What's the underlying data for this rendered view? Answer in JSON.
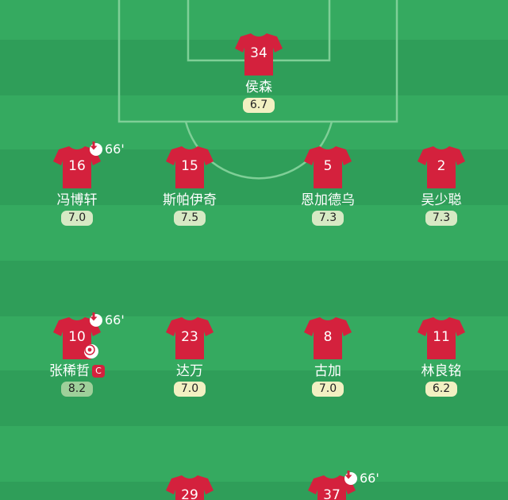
{
  "colors": {
    "pitch_stripe_dark": "#2f9e59",
    "pitch_stripe_light": "#35aa60",
    "line": "#7fcf97",
    "shirt": "#d4213d",
    "rating_low": "#f2f0c2",
    "rating_mid": "#d7e9c4",
    "rating_high": "#9fd09a"
  },
  "players": [
    {
      "id": "gk",
      "number": "34",
      "name": "侯森",
      "rating": "6.7",
      "rating_level": "low"
    },
    {
      "id": "d1",
      "number": "16",
      "name": "冯博轩",
      "rating": "7.0",
      "rating_level": "mid",
      "sub_minute": "66'",
      "sub_icon": "sub-off-arrow-icon"
    },
    {
      "id": "d2",
      "number": "15",
      "name": "斯帕伊奇",
      "rating": "7.5",
      "rating_level": "mid"
    },
    {
      "id": "d3",
      "number": "5",
      "name": "恩加德乌",
      "rating": "7.3",
      "rating_level": "mid"
    },
    {
      "id": "d4",
      "number": "2",
      "name": "吴少聪",
      "rating": "7.3",
      "rating_level": "mid"
    },
    {
      "id": "m1",
      "number": "10",
      "name": "张稀哲",
      "rating": "8.2",
      "rating_level": "high",
      "sub_minute": "66'",
      "sub_icon": "sub-off-arrow-icon",
      "goal_icon": "soccer-ball-icon",
      "captain": "C"
    },
    {
      "id": "m2",
      "number": "23",
      "name": "达万",
      "rating": "7.0",
      "rating_level": "low"
    },
    {
      "id": "m3",
      "number": "8",
      "name": "古加",
      "rating": "7.0",
      "rating_level": "low"
    },
    {
      "id": "m4",
      "number": "11",
      "name": "林良铭",
      "rating": "6.2",
      "rating_level": "low"
    },
    {
      "id": "f1",
      "number": "29"
    },
    {
      "id": "f2",
      "number": "37",
      "sub_minute": "66'",
      "sub_icon": "sub-off-arrow-icon"
    }
  ]
}
